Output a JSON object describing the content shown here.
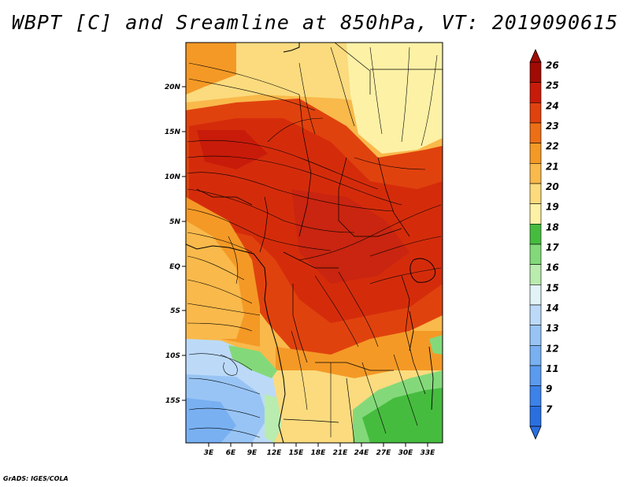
{
  "title": "WBPT [C] and Sreamline at 850hPa, VT: 2019090615",
  "credit": "GrADS: IGES/COLA",
  "axes": {
    "lat_labels": [
      "20N",
      "15N",
      "10N",
      "5N",
      "EQ",
      "5S",
      "10S",
      "15S"
    ],
    "lon_labels": [
      "3E",
      "6E",
      "9E",
      "12E",
      "15E",
      "18E",
      "21E",
      "24E",
      "27E",
      "30E",
      "33E"
    ]
  },
  "colorbar": {
    "labels": [
      "7",
      "9",
      "11",
      "12",
      "13",
      "14",
      "15",
      "16",
      "17",
      "18",
      "19",
      "20",
      "21",
      "22",
      "23",
      "24",
      "25",
      "26"
    ],
    "colors": [
      "#2a6fe0",
      "#3c82e8",
      "#5a9bef",
      "#78b0f2",
      "#98c4f5",
      "#bcdaf8",
      "#e2f3f5",
      "#b9ecae",
      "#83d97a",
      "#46bc3f",
      "#fdf1a6",
      "#fbdb7e",
      "#f9b94b",
      "#f49926",
      "#ec6f16",
      "#e0420e",
      "#c81b0a",
      "#a00c05"
    ]
  },
  "map": {
    "field": "WBPT",
    "units": "C",
    "level": "850hPa",
    "valid_time": "2019090615"
  }
}
